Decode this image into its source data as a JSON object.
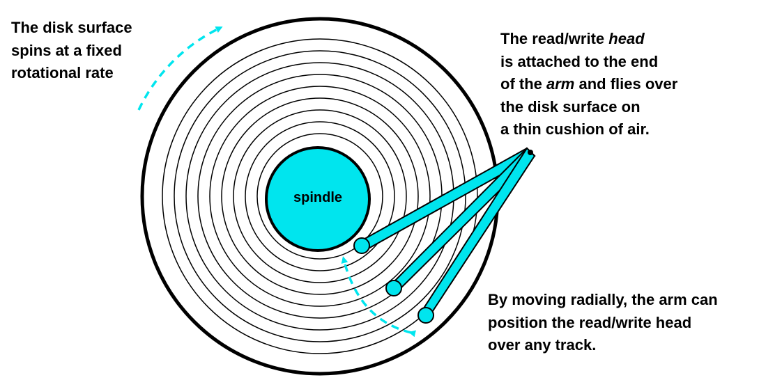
{
  "colors": {
    "accent": "#00e5ee",
    "outline": "#000000",
    "background": "#ffffff"
  },
  "spindle": {
    "label": "spindle"
  },
  "captions": {
    "spin": {
      "lines": [
        "The disk surface",
        "spins at a fixed",
        "rotational rate"
      ]
    },
    "head": {
      "line1": "The read/write ",
      "line1_em": "head",
      "line2": "is attached to the end",
      "line3_pre": "of the ",
      "line3_em": "arm",
      "line3_post": " and flies over",
      "line4": "the disk surface on",
      "line5": "a thin cushion of air."
    },
    "move": {
      "lines": [
        "By moving radially, the arm can",
        "position the read/write head",
        "over any track."
      ]
    }
  }
}
